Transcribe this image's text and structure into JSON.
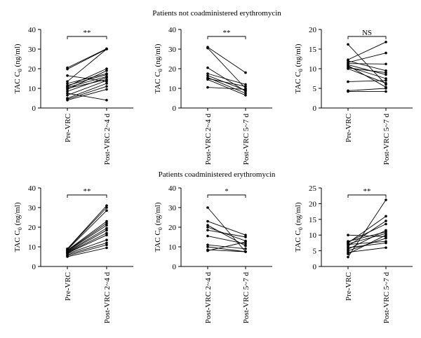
{
  "section_titles": [
    "Patients not coadministered erythromycin",
    "Patients coadministered erythromycin"
  ],
  "chart_data": [
    {
      "type": "line",
      "ylabel_main": "TAC C",
      "ylabel_sub": "0",
      "ylabel_unit": " (ng/ml)",
      "categories": [
        "Pre-VRC",
        "Post-VRC 2~4 d"
      ],
      "ylim": [
        0,
        40
      ],
      "yticks": [
        "0",
        "10",
        "20",
        "30",
        "40"
      ],
      "significance": "**",
      "series": [
        {
          "values": [
            20.5,
            30.2
          ]
        },
        {
          "values": [
            19.8,
            30.0
          ]
        },
        {
          "values": [
            16.5,
            13.5
          ]
        },
        {
          "values": [
            13.5,
            30.0
          ]
        },
        {
          "values": [
            12.5,
            17.5
          ]
        },
        {
          "values": [
            11.5,
            17.0
          ]
        },
        {
          "values": [
            11.0,
            20.0
          ]
        },
        {
          "values": [
            10.5,
            16.0
          ]
        },
        {
          "values": [
            10.0,
            14.5
          ]
        },
        {
          "values": [
            9.5,
            19.0
          ]
        },
        {
          "values": [
            8.5,
            15.5
          ]
        },
        {
          "values": [
            7.5,
            4.0
          ]
        },
        {
          "values": [
            6.5,
            14.0
          ]
        },
        {
          "values": [
            5.0,
            12.5
          ]
        },
        {
          "values": [
            4.5,
            11.0
          ]
        },
        {
          "values": [
            4.0,
            9.5
          ]
        }
      ]
    },
    {
      "type": "line",
      "ylabel_main": "TAC C",
      "ylabel_sub": "0",
      "ylabel_unit": " (ng/ml)",
      "categories": [
        "Post-VRC 2~4 d",
        "Post-VRC 5~7 d"
      ],
      "ylim": [
        0,
        40
      ],
      "yticks": [
        "0",
        "10",
        "20",
        "30",
        "40"
      ],
      "significance": "**",
      "series": [
        {
          "values": [
            31.0,
            18.0
          ]
        },
        {
          "values": [
            30.5,
            10.0
          ]
        },
        {
          "values": [
            20.5,
            8.5
          ]
        },
        {
          "values": [
            17.5,
            12.0
          ]
        },
        {
          "values": [
            16.5,
            9.0
          ]
        },
        {
          "values": [
            15.5,
            7.5
          ]
        },
        {
          "values": [
            15.0,
            11.0
          ]
        },
        {
          "values": [
            14.5,
            6.5
          ]
        },
        {
          "values": [
            10.5,
            9.5
          ]
        }
      ]
    },
    {
      "type": "line",
      "ylabel_main": "TAC C",
      "ylabel_sub": "0",
      "ylabel_unit": " (ng/ml)",
      "categories": [
        "Pre-VRC",
        "Post-VRC 5~7 d"
      ],
      "ylim": [
        0,
        20
      ],
      "yticks": [
        "0",
        "5",
        "10",
        "15",
        "20"
      ],
      "significance": "NS",
      "series": [
        {
          "values": [
            16.2,
            6.0
          ]
        },
        {
          "values": [
            12.3,
            16.8
          ]
        },
        {
          "values": [
            12.0,
            9.5
          ]
        },
        {
          "values": [
            11.6,
            14.0
          ]
        },
        {
          "values": [
            11.3,
            11.2
          ]
        },
        {
          "values": [
            11.0,
            8.5
          ]
        },
        {
          "values": [
            10.8,
            5.3
          ]
        },
        {
          "values": [
            10.5,
            7.5
          ]
        },
        {
          "values": [
            10.2,
            9.0
          ]
        },
        {
          "values": [
            10.0,
            6.3
          ]
        },
        {
          "values": [
            6.7,
            7.0
          ]
        },
        {
          "values": [
            4.4,
            5.0
          ]
        },
        {
          "values": [
            4.2,
            4.2
          ]
        }
      ]
    },
    {
      "type": "line",
      "ylabel_main": "TAC C",
      "ylabel_sub": "0",
      "ylabel_unit": " (ng/ml)",
      "categories": [
        "Pre-VRC",
        "Post-VRC 2~4 d"
      ],
      "ylim": [
        0,
        40
      ],
      "yticks": [
        "0",
        "10",
        "20",
        "30",
        "40"
      ],
      "significance": "**",
      "series": [
        {
          "values": [
            9.0,
            31.0
          ]
        },
        {
          "values": [
            8.8,
            30.0
          ]
        },
        {
          "values": [
            8.5,
            28.5
          ]
        },
        {
          "values": [
            8.2,
            23.0
          ]
        },
        {
          "values": [
            8.0,
            22.0
          ]
        },
        {
          "values": [
            7.8,
            21.0
          ]
        },
        {
          "values": [
            7.5,
            19.5
          ]
        },
        {
          "values": [
            7.2,
            18.5
          ]
        },
        {
          "values": [
            7.0,
            17.0
          ]
        },
        {
          "values": [
            6.8,
            16.0
          ]
        },
        {
          "values": [
            6.5,
            13.5
          ]
        },
        {
          "values": [
            6.0,
            12.0
          ]
        },
        {
          "values": [
            5.5,
            11.0
          ]
        },
        {
          "values": [
            5.0,
            9.5
          ]
        }
      ]
    },
    {
      "type": "line",
      "ylabel_main": "TAC C",
      "ylabel_sub": "0",
      "ylabel_unit": " (ng/ml)",
      "categories": [
        "Post-VRC 2~4 d",
        "Post-VRC 5~7 d"
      ],
      "ylim": [
        0,
        40
      ],
      "yticks": [
        "0",
        "10",
        "20",
        "30",
        "40"
      ],
      "significance": "*",
      "series": [
        {
          "values": [
            30.0,
            7.5
          ]
        },
        {
          "values": [
            23.0,
            16.0
          ]
        },
        {
          "values": [
            21.0,
            10.5
          ]
        },
        {
          "values": [
            20.0,
            13.0
          ]
        },
        {
          "values": [
            18.5,
            15.0
          ]
        },
        {
          "values": [
            15.5,
            11.5
          ]
        },
        {
          "values": [
            11.0,
            9.0
          ]
        },
        {
          "values": [
            10.0,
            7.5
          ]
        },
        {
          "values": [
            8.5,
            7.5
          ]
        },
        {
          "values": [
            8.0,
            12.5
          ]
        }
      ]
    },
    {
      "type": "line",
      "ylabel_main": "TAC C",
      "ylabel_sub": "0",
      "ylabel_unit": " (ng/ml)",
      "categories": [
        "Pre-VRC",
        "Post-VRC 5~7 d"
      ],
      "ylim": [
        0,
        25
      ],
      "yticks": [
        "0",
        "5",
        "10",
        "15",
        "20",
        "25"
      ],
      "significance": "**",
      "series": [
        {
          "values": [
            10.0,
            9.5
          ]
        },
        {
          "values": [
            8.0,
            11.0
          ]
        },
        {
          "values": [
            7.8,
            13.5
          ]
        },
        {
          "values": [
            7.5,
            16.0
          ]
        },
        {
          "values": [
            7.2,
            10.5
          ]
        },
        {
          "values": [
            7.0,
            8.0
          ]
        },
        {
          "values": [
            6.5,
            14.5
          ]
        },
        {
          "values": [
            6.0,
            7.5
          ]
        },
        {
          "values": [
            5.5,
            11.5
          ]
        },
        {
          "values": [
            5.0,
            9.0
          ]
        },
        {
          "values": [
            4.5,
            6.0
          ]
        },
        {
          "values": [
            4.0,
            10.0
          ]
        },
        {
          "values": [
            3.0,
            21.2
          ]
        }
      ]
    }
  ]
}
